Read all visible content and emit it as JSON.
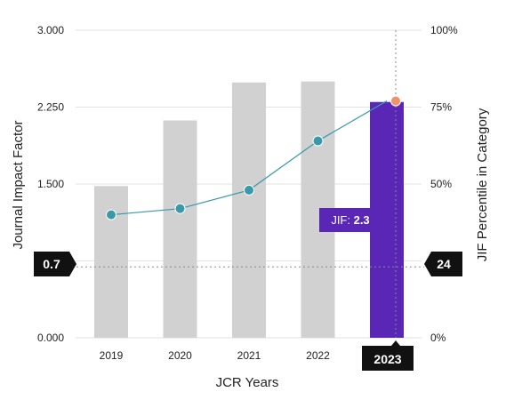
{
  "chart_data": {
    "type": "bar",
    "categories": [
      "2019",
      "2020",
      "2021",
      "2022",
      "2023"
    ],
    "series": [
      {
        "name": "Journal Impact Factor",
        "type": "bar",
        "axis": "left",
        "values": [
          1.48,
          2.12,
          2.49,
          2.5,
          2.3
        ]
      },
      {
        "name": "JIF Percentile in Category",
        "type": "line",
        "axis": "right",
        "values": [
          40,
          42,
          48,
          64,
          77
        ]
      }
    ],
    "highlight_category": "2023",
    "xlabel": "JCR Years",
    "ylabel_left": "Journal Impact Factor",
    "ylabel_right": "JIF Percentile in Category",
    "ylim_left": [
      0,
      3
    ],
    "ylim_right": [
      0,
      100
    ],
    "yticks_left": [
      "0.000",
      "0.750",
      "1.500",
      "2.250",
      "3.000"
    ],
    "yticks_right": [
      "0%",
      "25%",
      "50%",
      "75%",
      "100%"
    ],
    "grid": true,
    "reference": {
      "left_value": 0.7,
      "left_label": "0.7",
      "right_label": "24"
    },
    "tooltip": {
      "prefix": "JIF: ",
      "value": "2.3"
    },
    "colors": {
      "bar": "#d0d1d0",
      "bar_highlight": "#5a26b6",
      "line": "#3a98ab",
      "point": "#3a98ab",
      "point_highlight": "#f0906d",
      "tooltip_bg": "#5a26b6",
      "marker_bg": "#111111",
      "grid": "#e2e2e2"
    }
  }
}
